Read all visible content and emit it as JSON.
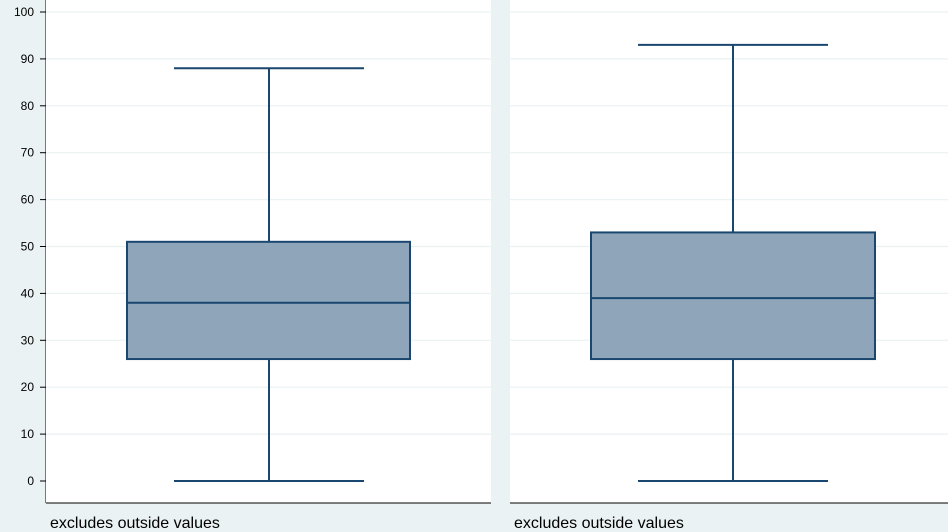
{
  "chart_data": {
    "type": "box",
    "ylim": [
      0,
      100
    ],
    "yticks": [
      0,
      10,
      20,
      30,
      40,
      50,
      60,
      70,
      80,
      90,
      100
    ],
    "grid": true,
    "panels": [
      {
        "note": "excludes outside values",
        "box": {
          "whisker_low": 0,
          "q1": 26,
          "median": 38,
          "q3": 51,
          "whisker_high": 88
        }
      },
      {
        "note": "excludes outside values",
        "box": {
          "whisker_low": 0,
          "q1": 26,
          "median": 39,
          "q3": 53,
          "whisker_high": 93
        }
      }
    ]
  },
  "colors": {
    "background": "#eaf2f3",
    "plot_area": "#ffffff",
    "gridline": "#eaf2f3",
    "box_fill": "#8ea5ba",
    "box_stroke": "#1a476f",
    "axis": "#000000"
  }
}
